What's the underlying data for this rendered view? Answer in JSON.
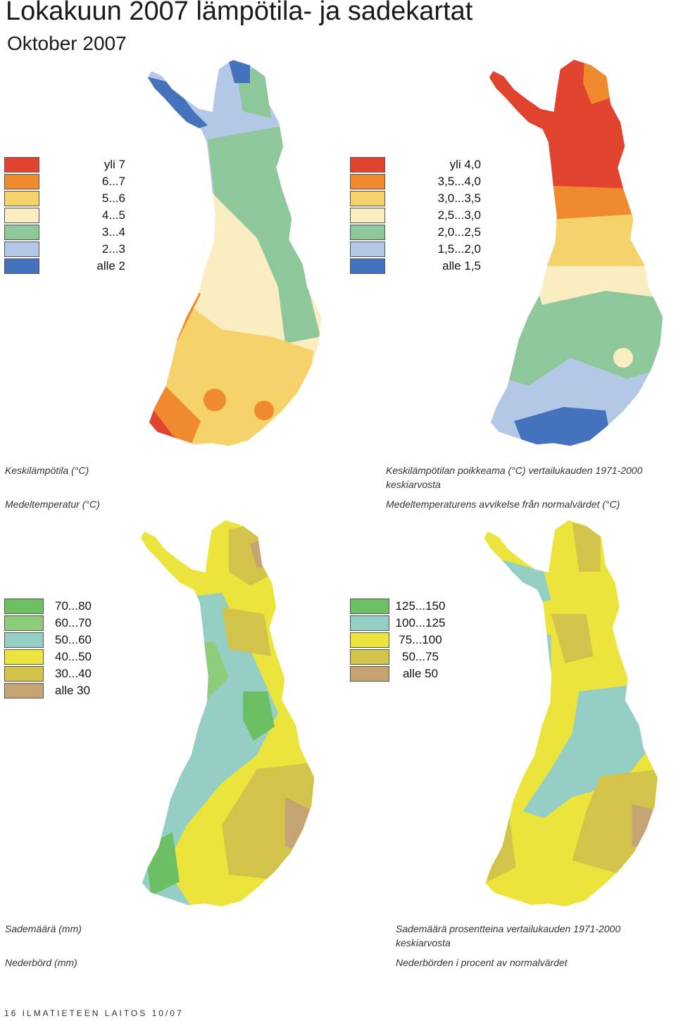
{
  "title": "Lokakuun  2007 lämpötila- ja sadekartat",
  "subtitle": "Oktober 2007",
  "colors": {
    "border": "#ffffff",
    "sea": "#ffffff"
  },
  "maps": [
    {
      "id": "temperature",
      "caption_fi": "Keskilämpötila (°C)",
      "caption_sv": "Medeltemperatur (°C)",
      "legend": [
        {
          "label": "yli 7",
          "color": "#e0442f"
        },
        {
          "label": "6...7",
          "color": "#f08a2e"
        },
        {
          "label": "5...6",
          "color": "#f5d36a"
        },
        {
          "label": "4...5",
          "color": "#fbedc2"
        },
        {
          "label": "3...4",
          "color": "#8ec89a"
        },
        {
          "label": "2...3",
          "color": "#b2c8e4"
        },
        {
          "label": "alle 2",
          "color": "#4572bd"
        }
      ]
    },
    {
      "id": "temperature-anomaly",
      "caption_fi": "Keskilämpötilan poikkeama (°C) vertailukauden 1971-2000 keskiarvosta",
      "caption_sv": "Medeltemperaturens avvikelse från normalvärdet (°C)",
      "legend": [
        {
          "label": "yli 4,0",
          "color": "#e0442f"
        },
        {
          "label": "3,5...4,0",
          "color": "#f08a2e"
        },
        {
          "label": "3,0...3,5",
          "color": "#f5d36a"
        },
        {
          "label": "2,5...3,0",
          "color": "#fbedc2"
        },
        {
          "label": "2,0...2,5",
          "color": "#8ec89a"
        },
        {
          "label": "1,5...2,0",
          "color": "#b2c8e4"
        },
        {
          "label": "alle 1,5",
          "color": "#4572bd"
        }
      ]
    },
    {
      "id": "precipitation",
      "caption_fi": "Sademäärä (mm)",
      "caption_sv": "Nederbörd (mm)",
      "legend": [
        {
          "label": "70...80",
          "color": "#6cbf63"
        },
        {
          "label": "60...70",
          "color": "#8ccc7b"
        },
        {
          "label": "50...60",
          "color": "#95cec4"
        },
        {
          "label": "40...50",
          "color": "#ebe43c"
        },
        {
          "label": "30...40",
          "color": "#d2c44a"
        },
        {
          "label": "alle 30",
          "color": "#c6a373"
        }
      ]
    },
    {
      "id": "precipitation-percent",
      "caption_fi": "Sademäärä prosentteina vertailukauden 1971-2000 keskiarvosta",
      "caption_sv": "Nederbörden i procent av normalvärdet",
      "legend": [
        {
          "label": "125...150",
          "color": "#6cbf63"
        },
        {
          "label": "100...125",
          "color": "#95cec4"
        },
        {
          "label": "75...100",
          "color": "#ebe43c"
        },
        {
          "label": "50...75",
          "color": "#d2c44a"
        },
        {
          "label": "alle 50",
          "color": "#c6a373"
        }
      ]
    }
  ],
  "footer": "16  ILMATIETEEN LAITOS 10/07"
}
